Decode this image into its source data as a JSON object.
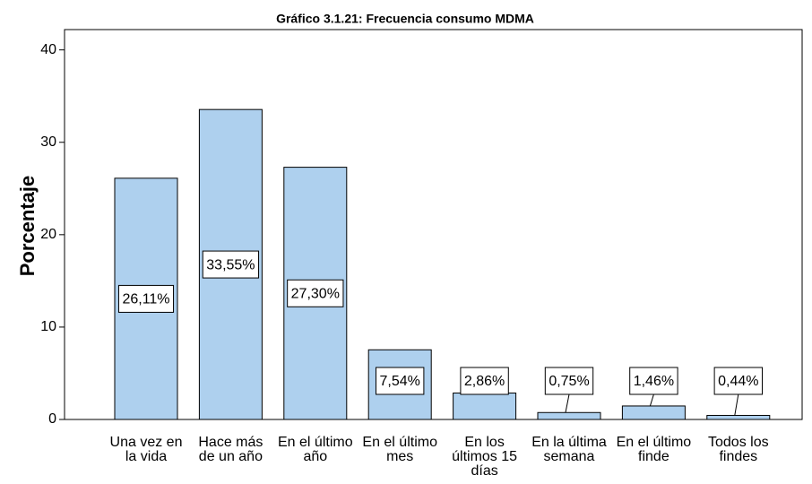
{
  "chart_data": {
    "type": "bar",
    "title": "Gráfico 3.1.21: Frecuencia consumo MDMA",
    "y_label": "Porcentaje",
    "categories": [
      "Una vez en la vida",
      "Hace más de un año",
      "En el último año",
      "En el último mes",
      "En los últimos 15 días",
      "En la última semana",
      "En el último finde",
      "Todos los findes"
    ],
    "values": [
      26.11,
      33.55,
      27.3,
      7.54,
      2.86,
      0.75,
      1.46,
      0.44
    ],
    "value_labels": [
      "26,11%",
      "33,55%",
      "27,30%",
      "7,54%",
      "2,86%",
      "0,75%",
      "1,46%",
      "0,44%"
    ],
    "color": "#aed0ee",
    "ylim": [
      0,
      42.2
    ],
    "yticks": [
      0,
      10,
      20,
      30,
      40
    ],
    "grid": false
  }
}
